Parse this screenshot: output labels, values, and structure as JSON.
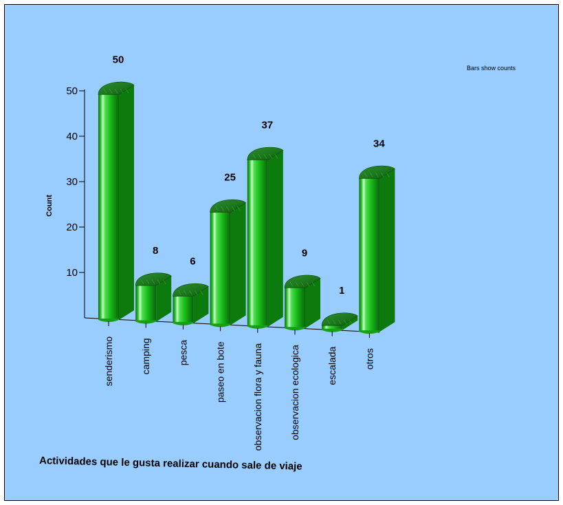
{
  "chart_data": {
    "type": "bar",
    "xlabel": "Actividades que le gusta realizar cuando sale de viaje",
    "ylabel": "Count",
    "note": "Bars show counts",
    "categories": [
      "senderismo",
      "camping",
      "pesca",
      "paseo en bote",
      "observacion flora y fauna",
      "observacion ecologica",
      "escalada",
      "otros"
    ],
    "values": [
      50,
      8,
      6,
      25,
      37,
      9,
      1,
      34
    ],
    "value_labels": [
      "50",
      "8",
      "6",
      "25",
      "37",
      "9",
      "1",
      "34"
    ],
    "y_ticks": [
      "10",
      "20",
      "30",
      "40",
      "50"
    ],
    "ylim": [
      0,
      50
    ],
    "bar_color": "#22cc22",
    "background_color": "#99ccff"
  }
}
